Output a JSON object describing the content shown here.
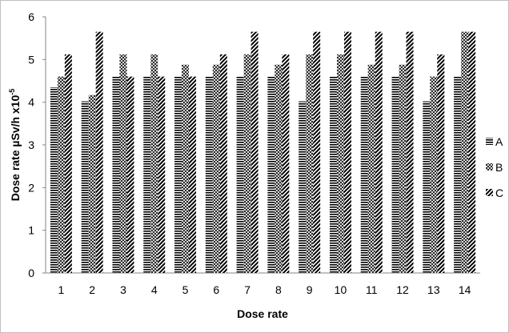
{
  "chart_data": {
    "type": "bar",
    "categories": [
      "1",
      "2",
      "3",
      "4",
      "5",
      "6",
      "7",
      "8",
      "9",
      "10",
      "11",
      "12",
      "13",
      "14"
    ],
    "series": [
      {
        "name": "A",
        "values": [
          4.35,
          4.02,
          4.6,
          4.6,
          4.6,
          4.6,
          4.6,
          4.6,
          4.02,
          4.6,
          4.6,
          4.6,
          4.02,
          4.6
        ]
      },
      {
        "name": "B",
        "values": [
          4.6,
          4.17,
          5.12,
          5.12,
          4.88,
          4.88,
          5.12,
          4.88,
          5.12,
          5.12,
          4.88,
          4.88,
          4.6,
          5.65
        ]
      },
      {
        "name": "C",
        "values": [
          5.12,
          5.65,
          4.6,
          4.6,
          4.6,
          5.12,
          5.65,
          5.12,
          5.65,
          5.65,
          5.65,
          5.65,
          5.12,
          5.65
        ]
      }
    ],
    "title": "",
    "xlabel": "Dose rate",
    "ylabel_main": "Dose rate µSv/h x10",
    "ylabel_exponent": "-5",
    "ylim": [
      0,
      6
    ],
    "yticks": [
      "0",
      "1",
      "2",
      "3",
      "4",
      "5",
      "6"
    ],
    "grid": false,
    "legend_position": "right"
  }
}
